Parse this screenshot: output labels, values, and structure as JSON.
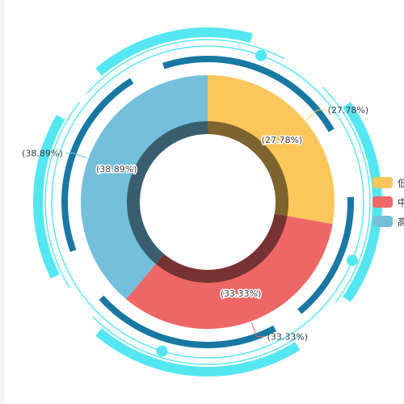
{
  "chart_data": {
    "type": "pie",
    "variant": "donut",
    "categories": [
      "低",
      "中",
      "高"
    ],
    "values": [
      27.78,
      33.33,
      38.89
    ],
    "value_unit": "%",
    "slice_labels": [
      "(27.78%)",
      "(33.33%)",
      "(38.89%)"
    ],
    "colors": [
      "#fbc65a",
      "#ee6767",
      "#73bfdc"
    ],
    "legend_position": "right",
    "legend": [
      "低",
      "中",
      "高"
    ]
  },
  "decor": {
    "ring_cyan": "#55e7f1",
    "ring_blue": "#1878a2"
  }
}
